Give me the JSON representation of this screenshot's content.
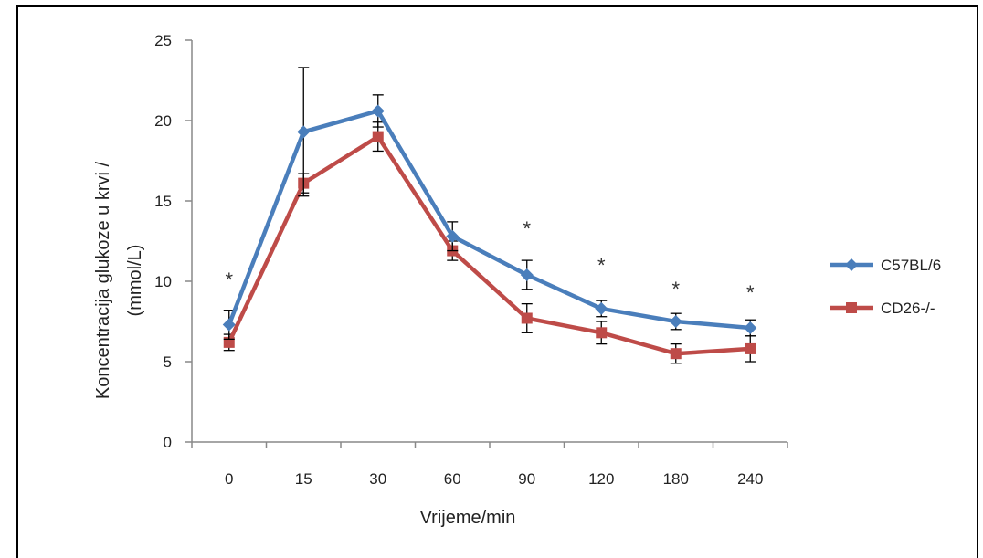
{
  "chart_data": {
    "type": "line",
    "categories": [
      "0",
      "15",
      "30",
      "60",
      "90",
      "120",
      "180",
      "240"
    ],
    "ylabel_line1": "Koncentracija glukoze u krvi /",
    "ylabel_line2": "(mmol/L)",
    "xlabel": "Vrijeme/min",
    "ylim": [
      0,
      25
    ],
    "yticks": [
      0,
      5,
      10,
      15,
      20,
      25
    ],
    "grid": false,
    "legend_position": "right",
    "significance_marker": "*",
    "significant_categories": [
      "0",
      "90",
      "120",
      "180",
      "240"
    ],
    "series": [
      {
        "name": "C57BL/6",
        "color": "#4a7ebb",
        "marker": "diamond",
        "values": [
          7.3,
          19.3,
          20.6,
          12.8,
          10.4,
          8.3,
          7.5,
          7.1
        ],
        "error": [
          0.9,
          4.0,
          1.0,
          0.9,
          0.9,
          0.5,
          0.5,
          0.5
        ]
      },
      {
        "name": "CD26-/-",
        "color": "#be4b48",
        "marker": "square",
        "values": [
          6.2,
          16.1,
          19.0,
          11.9,
          7.7,
          6.8,
          5.5,
          5.8
        ],
        "error": [
          0.5,
          0.6,
          0.9,
          0.6,
          0.9,
          0.7,
          0.6,
          0.8
        ]
      }
    ]
  }
}
